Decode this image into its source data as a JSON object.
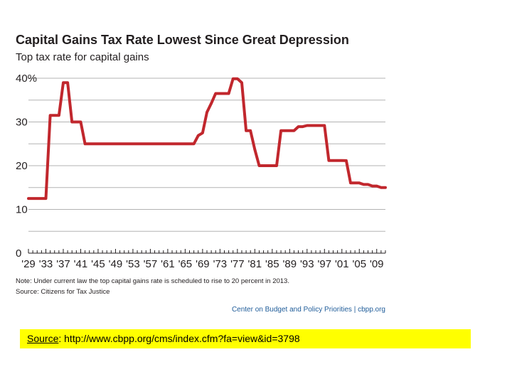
{
  "chart_data": {
    "type": "line",
    "title": "Capital Gains Tax Rate Lowest Since Great Depression",
    "subtitle": "Top tax rate for capital gains",
    "xlabel": "",
    "ylabel": "",
    "xlim": [
      1929,
      2011
    ],
    "ylim": [
      0,
      40
    ],
    "y_ticks": [
      0,
      10,
      20,
      30,
      40
    ],
    "y_tick_labels": [
      "0",
      "10",
      "20",
      "30",
      "40%"
    ],
    "x_ticks": [
      1929,
      1933,
      1937,
      1941,
      1945,
      1949,
      1953,
      1957,
      1961,
      1965,
      1969,
      1973,
      1977,
      1981,
      1985,
      1989,
      1993,
      1997,
      2001,
      2005,
      2009
    ],
    "x_tick_labels": [
      "'29",
      "'33",
      "'37",
      "'41",
      "'45",
      "'49",
      "'53",
      "'57",
      "'61",
      "'65",
      "'69",
      "'73",
      "'77",
      "'81",
      "'85",
      "'89",
      "'93",
      "'97",
      "'01",
      "'05",
      "'09"
    ],
    "grid": true,
    "line_color": "#c1272d",
    "series": [
      {
        "points": [
          [
            1929,
            12.5
          ],
          [
            1933,
            12.5
          ],
          [
            1934,
            31.5
          ],
          [
            1935,
            31.5
          ],
          [
            1936,
            31.5
          ],
          [
            1937,
            39
          ],
          [
            1938,
            39
          ],
          [
            1939,
            30
          ],
          [
            1940,
            30
          ],
          [
            1941,
            30
          ],
          [
            1942,
            25
          ],
          [
            1950,
            25
          ],
          [
            1955,
            25
          ],
          [
            1960,
            25
          ],
          [
            1965,
            25
          ],
          [
            1967,
            25
          ],
          [
            1968,
            26.9
          ],
          [
            1969,
            27.5
          ],
          [
            1970,
            32.21
          ],
          [
            1971,
            34.25
          ],
          [
            1972,
            36.5
          ],
          [
            1973,
            36.5
          ],
          [
            1974,
            36.5
          ],
          [
            1975,
            36.5
          ],
          [
            1976,
            39.875
          ],
          [
            1977,
            39.875
          ],
          [
            1978,
            39
          ],
          [
            1979,
            28
          ],
          [
            1980,
            28
          ],
          [
            1981,
            23.7
          ],
          [
            1982,
            20
          ],
          [
            1983,
            20
          ],
          [
            1984,
            20
          ],
          [
            1985,
            20
          ],
          [
            1986,
            20
          ],
          [
            1987,
            28
          ],
          [
            1988,
            28
          ],
          [
            1989,
            28
          ],
          [
            1990,
            28
          ],
          [
            1991,
            28.93
          ],
          [
            1992,
            28.93
          ],
          [
            1993,
            29.19
          ],
          [
            1994,
            29.19
          ],
          [
            1995,
            29.19
          ],
          [
            1996,
            29.19
          ],
          [
            1997,
            29.19
          ],
          [
            1998,
            21.19
          ],
          [
            1999,
            21.19
          ],
          [
            2000,
            21.19
          ],
          [
            2001,
            21.17
          ],
          [
            2002,
            21.16
          ],
          [
            2003,
            16.05
          ],
          [
            2004,
            16.05
          ],
          [
            2005,
            16.05
          ],
          [
            2006,
            15.7
          ],
          [
            2007,
            15.7
          ],
          [
            2008,
            15.35
          ],
          [
            2009,
            15.35
          ],
          [
            2010,
            15
          ],
          [
            2011,
            15
          ]
        ]
      }
    ]
  },
  "notes": {
    "note": "Note: Under current law the top capital gains rate is scheduled to rise to 20 percent in 2013.",
    "source": "Source: Citizens for Tax Justice",
    "credit": "Center on Budget and Policy Priorities | cbpp.org"
  },
  "caption": {
    "label": "Source",
    "text": ": http://www.cbpp.org/cms/index.cfm?fa=view&id=3798",
    "highlight_color": "#ffff00"
  }
}
